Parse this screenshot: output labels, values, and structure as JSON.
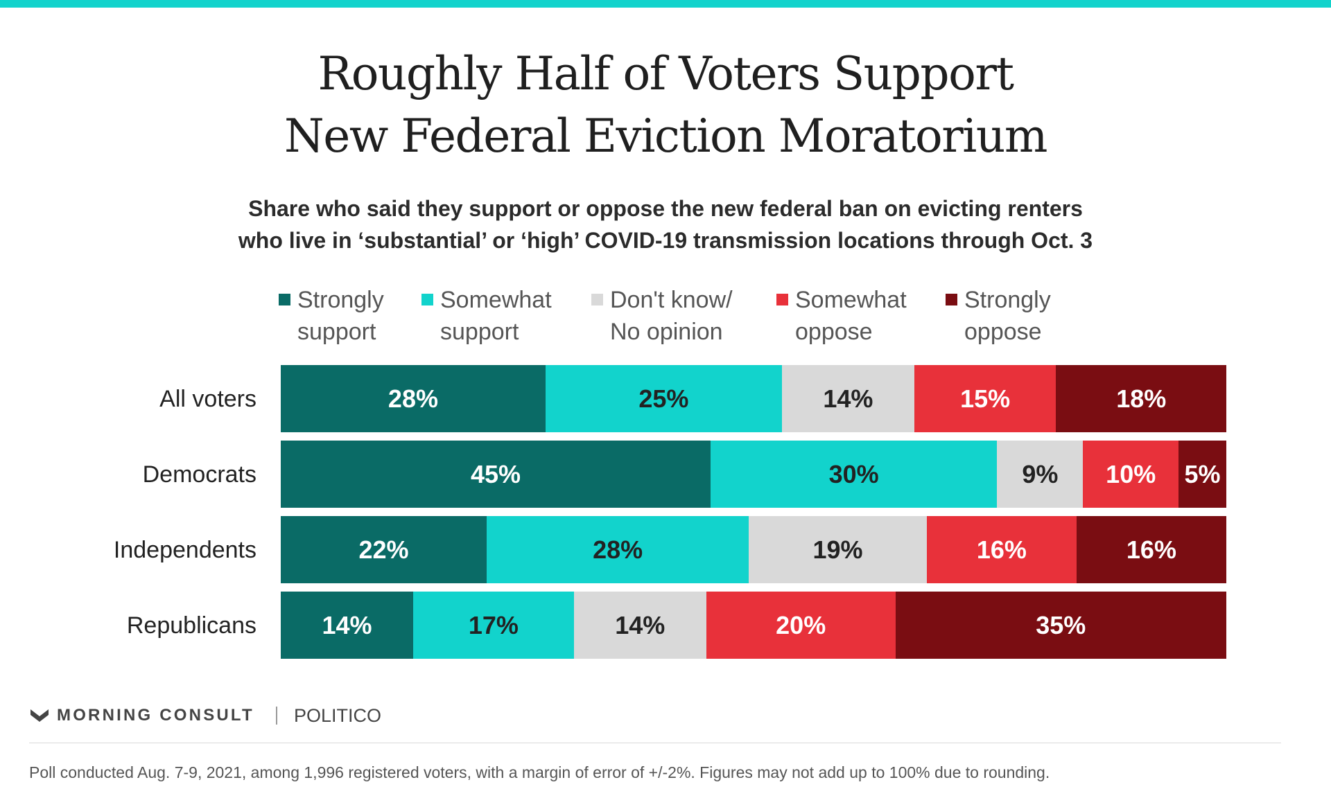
{
  "title_lines": [
    "Roughly Half of Voters Support",
    "New Federal Eviction Moratorium"
  ],
  "subtitle_lines": [
    "Share who said they support or oppose the new federal ban on evicting renters",
    "who live in ‘substantial’ or ‘high’ COVID-19 transmission locations through Oct. 3"
  ],
  "chart_data": {
    "type": "bar",
    "orientation": "horizontal",
    "stacked": true,
    "categories": [
      "All voters",
      "Democrats",
      "Independents",
      "Republicans"
    ],
    "series": [
      {
        "name": "Strongly support",
        "legend_lines": [
          "Strongly",
          "support"
        ],
        "color": "#0a6b66",
        "label_color": "#ffffff",
        "values": [
          28,
          45,
          22,
          14
        ]
      },
      {
        "name": "Somewhat support",
        "legend_lines": [
          "Somewhat",
          "support"
        ],
        "color": "#12d3cc",
        "label_color": "#222222",
        "values": [
          25,
          30,
          28,
          17
        ]
      },
      {
        "name": "Don't know/ No opinion",
        "legend_lines": [
          "Don't know/",
          "No opinion"
        ],
        "color": "#d9d9d9",
        "label_color": "#222222",
        "values": [
          14,
          9,
          19,
          14
        ]
      },
      {
        "name": "Somewhat oppose",
        "legend_lines": [
          "Somewhat",
          "oppose"
        ],
        "color": "#e8313a",
        "label_color": "#ffffff",
        "values": [
          15,
          10,
          16,
          20
        ]
      },
      {
        "name": "Strongly oppose",
        "legend_lines": [
          "Strongly",
          "oppose"
        ],
        "color": "#7a0d12",
        "label_color": "#ffffff",
        "values": [
          18,
          5,
          16,
          35
        ]
      }
    ],
    "value_suffix": "%",
    "legend_position": "top",
    "grid": false
  },
  "branding": {
    "morning_consult": "MORNING CONSULT",
    "politico": "POLITICO",
    "morning_consult_icon": "mc-chevron-icon"
  },
  "footnote": "Poll conducted Aug. 7-9, 2021, among 1,996 registered voters, with a margin of error of +/-2%. Figures may not add up to 100% due to rounding."
}
